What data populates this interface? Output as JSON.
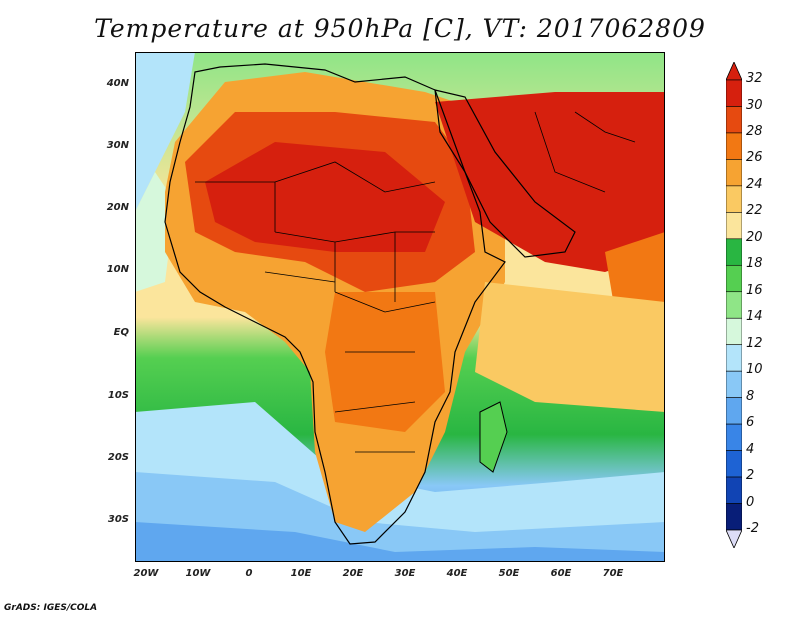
{
  "title": "Temperature at 950hPa [C], VT: 2017062809",
  "footer": "GrADS: IGES/COLA",
  "map": {
    "lon_range": [
      -22,
      80
    ],
    "lat_range": [
      -37,
      45
    ],
    "y_ticks": [
      {
        "lat": 40,
        "label": "40N"
      },
      {
        "lat": 30,
        "label": "30N"
      },
      {
        "lat": 20,
        "label": "20N"
      },
      {
        "lat": 10,
        "label": "10N"
      },
      {
        "lat": 0,
        "label": "EQ"
      },
      {
        "lat": -10,
        "label": "10S"
      },
      {
        "lat": -20,
        "label": "20S"
      },
      {
        "lat": -30,
        "label": "30S"
      }
    ],
    "x_ticks": [
      {
        "lon": -20,
        "label": "20W"
      },
      {
        "lon": -10,
        "label": "10W"
      },
      {
        "lon": 0,
        "label": "0"
      },
      {
        "lon": 10,
        "label": "10E"
      },
      {
        "lon": 20,
        "label": "20E"
      },
      {
        "lon": 30,
        "label": "30E"
      },
      {
        "lon": 40,
        "label": "40E"
      },
      {
        "lon": 50,
        "label": "50E"
      },
      {
        "lon": 60,
        "label": "60E"
      },
      {
        "lon": 70,
        "label": "70E"
      }
    ]
  },
  "colorbar": {
    "levels": [
      "32",
      "30",
      "28",
      "26",
      "24",
      "22",
      "20",
      "18",
      "16",
      "14",
      "12",
      "10",
      "8",
      "6",
      "4",
      "2",
      "0",
      "-2"
    ],
    "colors": [
      "#d6200e",
      "#e64a10",
      "#f27813",
      "#f6a332",
      "#fac962",
      "#fbe59c",
      "#29b642",
      "#55cf51",
      "#8fe587",
      "#d6f8dc",
      "#b3e4fa",
      "#89c8f6",
      "#5fa7ef",
      "#3985e7",
      "#1e63d4",
      "#1144b4",
      "#081e78"
    ],
    "top_color": "#d6200e",
    "bottom_color": "#dcdcf6"
  }
}
